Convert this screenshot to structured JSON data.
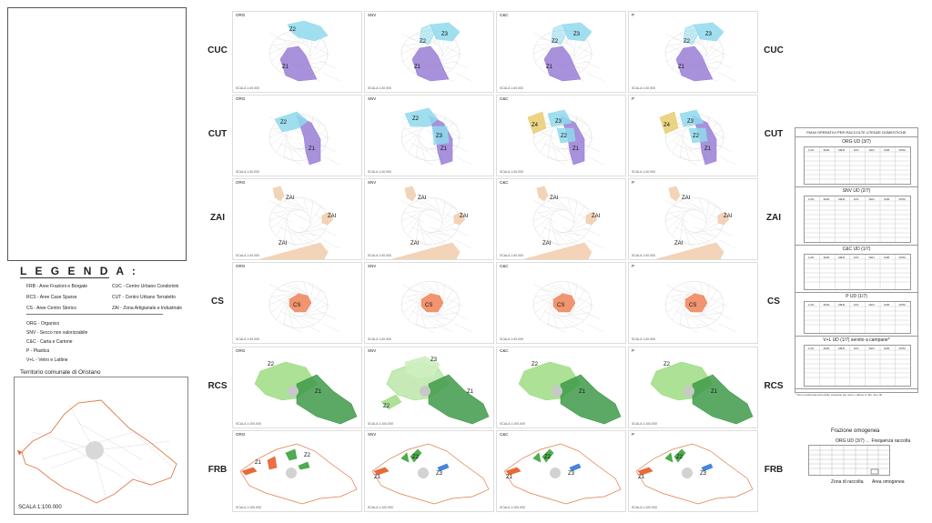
{
  "legend": {
    "title": "L E G E N D A :",
    "areas_left": [
      "FRB - Aree Frazioni e Borgate",
      "RCS - Aree Case Sparse",
      "CS - Aree Centro Storico"
    ],
    "areas_right": [
      "CUC - Centro Urbano Condomini",
      "CUT - Centro Urbano Terratetto",
      "ZAI - Zona Artigianale e Industriale"
    ],
    "fractions": [
      "ORG - Organico",
      "SNV - Secco non valorizzabile",
      "C&C - Carta e Cartone",
      "P - Plastica",
      "V+L - Vetro e Lattine"
    ]
  },
  "territory": {
    "title": "Territorio comunale di Oristano",
    "scale": "SCALA 1:100.000"
  },
  "columns": [
    "ORG",
    "SNV",
    "C&C",
    "P"
  ],
  "rows": [
    {
      "label": "CUC",
      "scale": "SCALA 1:40.000"
    },
    {
      "label": "CUT",
      "scale": "SCALA 1:40.000"
    },
    {
      "label": "ZAI",
      "scale": "SCALA 1:40.000"
    },
    {
      "label": "CS",
      "scale": "SCALA 1:40.000"
    },
    {
      "label": "RCS",
      "scale": "SCALA 1:100.000"
    },
    {
      "label": "FRB",
      "scale": "SCALA 1:100.000"
    }
  ],
  "zones": {
    "CUC": [
      [
        "Z1",
        "Z2"
      ],
      [
        "Z1",
        "Z2",
        "Z3"
      ],
      [
        "Z1",
        "Z2",
        "Z3"
      ],
      [
        "Z1",
        "Z2",
        "Z3"
      ]
    ],
    "CUT": [
      [
        "Z1",
        "Z2"
      ],
      [
        "Z1",
        "Z2",
        "Z3"
      ],
      [
        "Z1",
        "Z2",
        "Z3",
        "Z4"
      ],
      [
        "Z1",
        "Z2",
        "Z3",
        "Z4"
      ]
    ],
    "ZAI": [
      [
        "ZAI",
        "ZAI",
        "ZAI"
      ],
      [
        "ZAI",
        "ZAI",
        "ZAI"
      ],
      [
        "ZAI",
        "ZAI",
        "ZAI"
      ],
      [
        "ZAI",
        "ZAI",
        "ZAI"
      ]
    ],
    "CS": [
      [
        "CS"
      ],
      [
        "CS"
      ],
      [
        "CS"
      ],
      [
        "CS"
      ]
    ],
    "RCS": [
      [
        "Z1",
        "Z2"
      ],
      [
        "Z1",
        "Z2",
        "Z3"
      ],
      [
        "Z1",
        "Z2"
      ],
      [
        "Z1",
        "Z2"
      ]
    ],
    "FRB": [
      [
        "Z1",
        "Z2"
      ],
      [
        "Z1",
        "Z2",
        "Z3"
      ],
      [
        "Z1",
        "Z2",
        "Z3"
      ],
      [
        "Z1",
        "Z2",
        "Z3"
      ]
    ]
  },
  "colors": {
    "cyan": "#8fd9ec",
    "purple": "#9a7fd6",
    "tan": "#f1c9a8",
    "salmon": "#f08a62",
    "lightgreen": "#9fdc84",
    "darkgreen": "#3f9a4a",
    "yellow": "#e8cc6e",
    "orange": "#e8622e",
    "blue": "#3d7fd6",
    "green": "#3ca33c",
    "boundary": "#e07a4a"
  },
  "table": {
    "title": "PIANI OPERATIVI PER RACCOLTE UTENZE DOMESTICHE",
    "sections": [
      "ORG UD (3/7)",
      "SNV UD (2/7)",
      "C&C UD (1/7)",
      "P UD (1/7)",
      "V+L UD (1/7) servito a campane*"
    ],
    "days": [
      "LUN.",
      "MAR.",
      "MER.",
      "GIO.",
      "VEN.",
      "SAB.",
      "DOM."
    ],
    "note": "* Per il posizionamento delle campane per vetro + lattine in Tav. 4a e 4b"
  },
  "key": {
    "fraction_label": "Frazione omogenea",
    "freq_label": "ORG UD (3/7) ← Frequenza raccolta",
    "zone_label": "Zona di raccolta",
    "area_label": "Area omogenea"
  }
}
